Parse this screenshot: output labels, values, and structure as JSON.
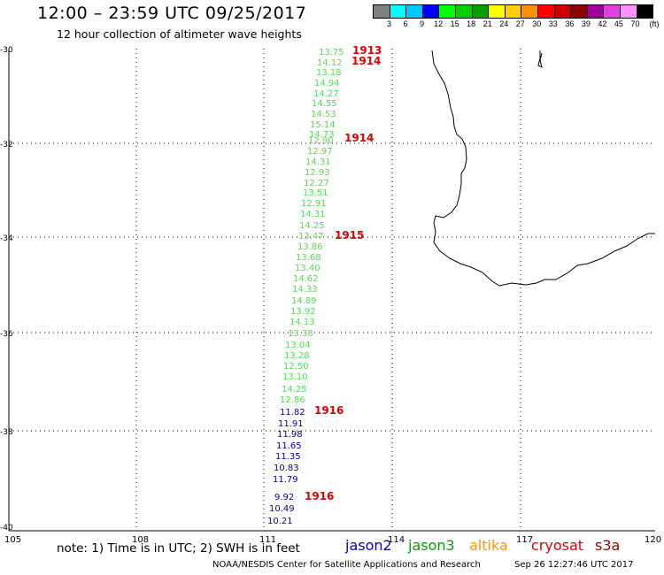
{
  "header": {
    "title": "12:00 – 23:59 UTC 09/25/2017",
    "subtitle": "12 hour collection of altimeter wave heights"
  },
  "legend": {
    "unit": "(ft)",
    "colors": [
      "#808080",
      "#00ffff",
      "#00c8ff",
      "#0000ff",
      "#00ff00",
      "#00d000",
      "#00a000",
      "#ffff00",
      "#ffd000",
      "#ff9000",
      "#ff0000",
      "#d00000",
      "#900000",
      "#a000a0",
      "#e040e0",
      "#ff90ff",
      "#000000"
    ],
    "labels": [
      "3",
      "6",
      "9",
      "12",
      "15",
      "18",
      "21",
      "24",
      "27",
      "30",
      "33",
      "36",
      "39",
      "42",
      "45",
      "70"
    ]
  },
  "axes": {
    "lon_labels": [
      "105",
      "108",
      "111",
      "114",
      "117",
      "120"
    ],
    "lat_labels": [
      "-30",
      "-32",
      "-34",
      "-36",
      "-38",
      "-40"
    ]
  },
  "track_colors": {
    "green": "#55dd55",
    "blue": "#0000aa",
    "time": "#dd0000"
  },
  "wave_heights": [
    {
      "v": "13.75",
      "c": "green"
    },
    {
      "v": "14.12",
      "c": "green"
    },
    {
      "v": "13.18",
      "c": "green"
    },
    {
      "v": "14.94",
      "c": "green"
    },
    {
      "v": "14.27",
      "c": "green"
    },
    {
      "v": "14.55",
      "c": "green"
    },
    {
      "v": "14.53",
      "c": "green"
    },
    {
      "v": "15.14",
      "c": "green"
    },
    {
      "v": "14.73",
      "c": "green"
    },
    {
      "v": "12.90",
      "c": "green"
    },
    {
      "v": "12.97",
      "c": "green"
    },
    {
      "v": "14.31",
      "c": "green"
    },
    {
      "v": "12.93",
      "c": "green"
    },
    {
      "v": "12.27",
      "c": "green"
    },
    {
      "v": "13.51",
      "c": "green"
    },
    {
      "v": "12.91",
      "c": "green"
    },
    {
      "v": "14.31",
      "c": "green"
    },
    {
      "v": "14.25",
      "c": "green"
    },
    {
      "v": "13.47",
      "c": "green"
    },
    {
      "v": "13.86",
      "c": "green"
    },
    {
      "v": "13.68",
      "c": "green"
    },
    {
      "v": "13.40",
      "c": "green"
    },
    {
      "v": "14.62",
      "c": "green"
    },
    {
      "v": "14.33",
      "c": "green"
    },
    {
      "v": "14.89",
      "c": "green"
    },
    {
      "v": "13.92",
      "c": "green"
    },
    {
      "v": "14.13",
      "c": "green"
    },
    {
      "v": "13.38",
      "c": "green"
    },
    {
      "v": "13.04",
      "c": "green"
    },
    {
      "v": "13.28",
      "c": "green"
    },
    {
      "v": "12.50",
      "c": "green"
    },
    {
      "v": "13.10",
      "c": "green"
    },
    {
      "v": "14.25",
      "c": "green"
    },
    {
      "v": "12.86",
      "c": "green"
    },
    {
      "v": "11.82",
      "c": "blue"
    },
    {
      "v": "11.91",
      "c": "blue"
    },
    {
      "v": "11.98",
      "c": "blue"
    },
    {
      "v": "11.65",
      "c": "blue"
    },
    {
      "v": "11.35",
      "c": "blue"
    },
    {
      "v": "10.83",
      "c": "blue"
    },
    {
      "v": "11.79",
      "c": "blue"
    },
    {
      "v": "9.92",
      "c": "blue"
    },
    {
      "v": "10.49",
      "c": "blue"
    },
    {
      "v": "10.21",
      "c": "blue"
    }
  ],
  "time_labels": [
    "1913",
    "1914",
    "1914",
    "1915",
    "1916",
    "1916"
  ],
  "notes": {
    "note": "note:  1) Time is in UTC;  2) SWH is in feet",
    "footer_left": "NOAA/NESDIS Center for Satellite Applications and Research",
    "footer_right": "Sep 26 12:27:46 UTC 2017"
  },
  "satellites": [
    {
      "name": "jason2",
      "color": "#0000cc"
    },
    {
      "name": "jason3",
      "color": "#00a000"
    },
    {
      "name": "altika",
      "color": "#ff9900"
    },
    {
      "name": "cryosat",
      "color": "#dd0000"
    },
    {
      "name": "s3a",
      "color": "#990000"
    }
  ]
}
